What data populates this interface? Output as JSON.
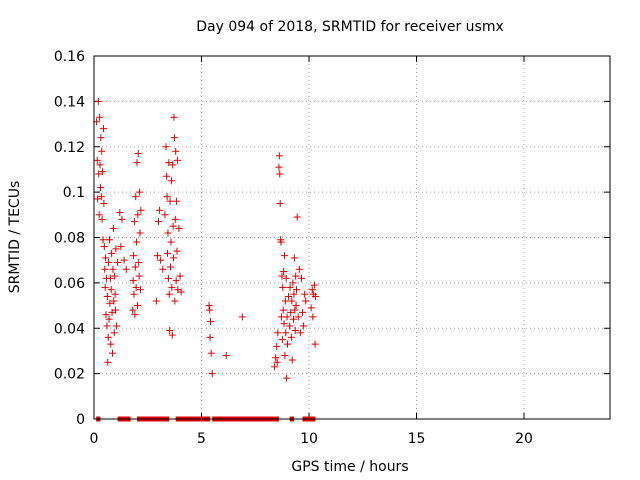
{
  "chart_data": {
    "type": "scatter",
    "title": "Day 094 of 2018, SRMTID for receiver usmx",
    "xlabel": "GPS time / hours",
    "ylabel": "SRMTID / TECUs",
    "xlim": [
      0,
      24
    ],
    "ylim": [
      0,
      0.16
    ],
    "xticks": [
      0,
      5,
      10,
      15,
      20
    ],
    "xtick_labels": [
      "0",
      "5",
      "10",
      "15",
      "20"
    ],
    "yticks": [
      0,
      0.02,
      0.04,
      0.06,
      0.08,
      0.1,
      0.12,
      0.14,
      0.16
    ],
    "ytick_labels": [
      "0",
      "0.02",
      "0.04",
      "0.06",
      "0.08",
      "0.1",
      "0.12",
      "0.14",
      "0.16"
    ],
    "grid": true,
    "marker": "+",
    "color": "#e00000",
    "series": [
      {
        "name": "SRMTID",
        "points": [
          [
            0.12,
            0.131
          ],
          [
            0.15,
            0.114
          ],
          [
            0.17,
            0.097
          ],
          [
            0.2,
            0.14
          ],
          [
            0.22,
            0.108
          ],
          [
            0.24,
            0.09
          ],
          [
            0.26,
            0.133
          ],
          [
            0.28,
            0.112
          ],
          [
            0.3,
            0.102
          ],
          [
            0.32,
            0.124
          ],
          [
            0.34,
            0.098
          ],
          [
            0.36,
            0.118
          ],
          [
            0.38,
            0.088
          ],
          [
            0.4,
            0.109
          ],
          [
            0.42,
            0.079
          ],
          [
            0.44,
            0.128
          ],
          [
            0.46,
            0.095
          ],
          [
            0.48,
            0.076
          ],
          [
            0.5,
            0.066
          ],
          [
            0.52,
            0.058
          ],
          [
            0.54,
            0.071
          ],
          [
            0.56,
            0.046
          ],
          [
            0.58,
            0.062
          ],
          [
            0.6,
            0.041
          ],
          [
            0.62,
            0.054
          ],
          [
            0.64,
            0.025
          ],
          [
            0.66,
            0.036
          ],
          [
            0.68,
            0.069
          ],
          [
            0.7,
            0.044
          ],
          [
            0.72,
            0.079
          ],
          [
            0.74,
            0.051
          ],
          [
            0.76,
            0.062
          ],
          [
            0.78,
            0.033
          ],
          [
            0.8,
            0.057
          ],
          [
            0.82,
            0.073
          ],
          [
            0.84,
            0.047
          ],
          [
            0.86,
            0.029
          ],
          [
            0.88,
            0.066
          ],
          [
            0.9,
            0.084
          ],
          [
            0.92,
            0.052
          ],
          [
            0.94,
            0.038
          ],
          [
            0.96,
            0.063
          ],
          [
            0.98,
            0.055
          ],
          [
            1.0,
            0.048
          ],
          [
            1.02,
            0.075
          ],
          [
            1.05,
            0.041
          ],
          [
            1.1,
            0.069
          ],
          [
            1.2,
            0.091
          ],
          [
            1.25,
            0.076
          ],
          [
            1.3,
            0.088
          ],
          [
            1.4,
            0.07
          ],
          [
            1.5,
            0.066
          ],
          [
            1.8,
            0.048
          ],
          [
            1.82,
            0.061
          ],
          [
            1.84,
            0.072
          ],
          [
            1.86,
            0.055
          ],
          [
            1.88,
            0.087
          ],
          [
            1.9,
            0.046
          ],
          [
            1.92,
            0.067
          ],
          [
            1.94,
            0.098
          ],
          [
            1.96,
            0.058
          ],
          [
            1.98,
            0.078
          ],
          [
            2.0,
            0.113
          ],
          [
            2.02,
            0.05
          ],
          [
            2.04,
            0.09
          ],
          [
            2.06,
            0.117
          ],
          [
            2.08,
            0.069
          ],
          [
            2.1,
            0.063
          ],
          [
            2.12,
            0.1
          ],
          [
            2.14,
            0.082
          ],
          [
            2.16,
            0.057
          ],
          [
            2.18,
            0.092
          ],
          [
            2.9,
            0.052
          ],
          [
            2.95,
            0.072
          ],
          [
            3.0,
            0.087
          ],
          [
            3.05,
            0.092
          ],
          [
            3.1,
            0.07
          ],
          [
            3.2,
            0.066
          ],
          [
            3.3,
            0.09
          ],
          [
            3.35,
            0.12
          ],
          [
            3.38,
            0.107
          ],
          [
            3.4,
            0.098
          ],
          [
            3.42,
            0.073
          ],
          [
            3.44,
            0.082
          ],
          [
            3.46,
            0.062
          ],
          [
            3.48,
            0.113
          ],
          [
            3.5,
            0.055
          ],
          [
            3.52,
            0.039
          ],
          [
            3.54,
            0.096
          ],
          [
            3.56,
            0.067
          ],
          [
            3.58,
            0.078
          ],
          [
            3.6,
            0.105
          ],
          [
            3.62,
            0.058
          ],
          [
            3.64,
            0.037
          ],
          [
            3.66,
            0.112
          ],
          [
            3.68,
            0.085
          ],
          [
            3.7,
            0.071
          ],
          [
            3.72,
            0.133
          ],
          [
            3.74,
            0.124
          ],
          [
            3.76,
            0.052
          ],
          [
            3.78,
            0.088
          ],
          [
            3.8,
            0.118
          ],
          [
            3.82,
            0.061
          ],
          [
            3.84,
            0.096
          ],
          [
            3.86,
            0.074
          ],
          [
            3.88,
            0.114
          ],
          [
            3.9,
            0.057
          ],
          [
            3.95,
            0.084
          ],
          [
            4.0,
            0.063
          ],
          [
            4.05,
            0.056
          ],
          [
            5.35,
            0.05
          ],
          [
            5.38,
            0.048
          ],
          [
            5.4,
            0.036
          ],
          [
            5.42,
            0.043
          ],
          [
            5.45,
            0.029
          ],
          [
            5.5,
            0.02
          ],
          [
            6.15,
            0.028
          ],
          [
            6.9,
            0.045
          ],
          [
            8.4,
            0.023
          ],
          [
            8.45,
            0.027
          ],
          [
            8.5,
            0.032
          ],
          [
            8.52,
            0.025
          ],
          [
            8.55,
            0.038
          ],
          [
            8.6,
            0.111
          ],
          [
            8.62,
            0.116
          ],
          [
            8.64,
            0.108
          ],
          [
            8.66,
            0.095
          ],
          [
            8.68,
            0.079
          ],
          [
            8.7,
            0.078
          ],
          [
            8.72,
            0.045
          ],
          [
            8.74,
            0.063
          ],
          [
            8.76,
            0.035
          ],
          [
            8.78,
            0.058
          ],
          [
            8.8,
            0.048
          ],
          [
            8.82,
            0.065
          ],
          [
            8.84,
            0.042
          ],
          [
            8.86,
            0.072
          ],
          [
            8.88,
            0.028
          ],
          [
            8.9,
            0.052
          ],
          [
            8.92,
            0.038
          ],
          [
            8.94,
            0.062
          ],
          [
            8.96,
            0.018
          ],
          [
            8.98,
            0.045
          ],
          [
            9.0,
            0.033
          ],
          [
            9.05,
            0.054
          ],
          [
            9.1,
            0.041
          ],
          [
            9.12,
            0.058
          ],
          [
            9.15,
            0.047
          ],
          [
            9.18,
            0.036
          ],
          [
            9.2,
            0.052
          ],
          [
            9.22,
            0.026
          ],
          [
            9.25,
            0.06
          ],
          [
            9.28,
            0.044
          ],
          [
            9.3,
            0.055
          ],
          [
            9.32,
            0.071
          ],
          [
            9.34,
            0.048
          ],
          [
            9.36,
            0.039
          ],
          [
            9.38,
            0.063
          ],
          [
            9.4,
            0.05
          ],
          [
            9.42,
            0.057
          ],
          [
            9.45,
            0.089
          ],
          [
            9.5,
            0.045
          ],
          [
            9.55,
            0.066
          ],
          [
            9.6,
            0.038
          ],
          [
            9.65,
            0.062
          ],
          [
            9.7,
            0.047
          ],
          [
            9.75,
            0.041
          ],
          [
            9.8,
            0.055
          ],
          [
            9.85,
            0.052
          ],
          [
            10.1,
            0.049
          ],
          [
            10.15,
            0.057
          ],
          [
            10.18,
            0.045
          ],
          [
            10.2,
            0.055
          ],
          [
            10.25,
            0.059
          ],
          [
            10.28,
            0.033
          ],
          [
            10.3,
            0.054
          ]
        ]
      },
      {
        "name": "zero-level",
        "segments": [
          [
            0.1,
            0.3
          ],
          [
            1.1,
            1.7
          ],
          [
            2.0,
            3.5
          ],
          [
            3.8,
            5.4
          ],
          [
            5.5,
            8.6
          ],
          [
            9.1,
            9.3
          ],
          [
            9.7,
            10.3
          ]
        ]
      }
    ]
  }
}
